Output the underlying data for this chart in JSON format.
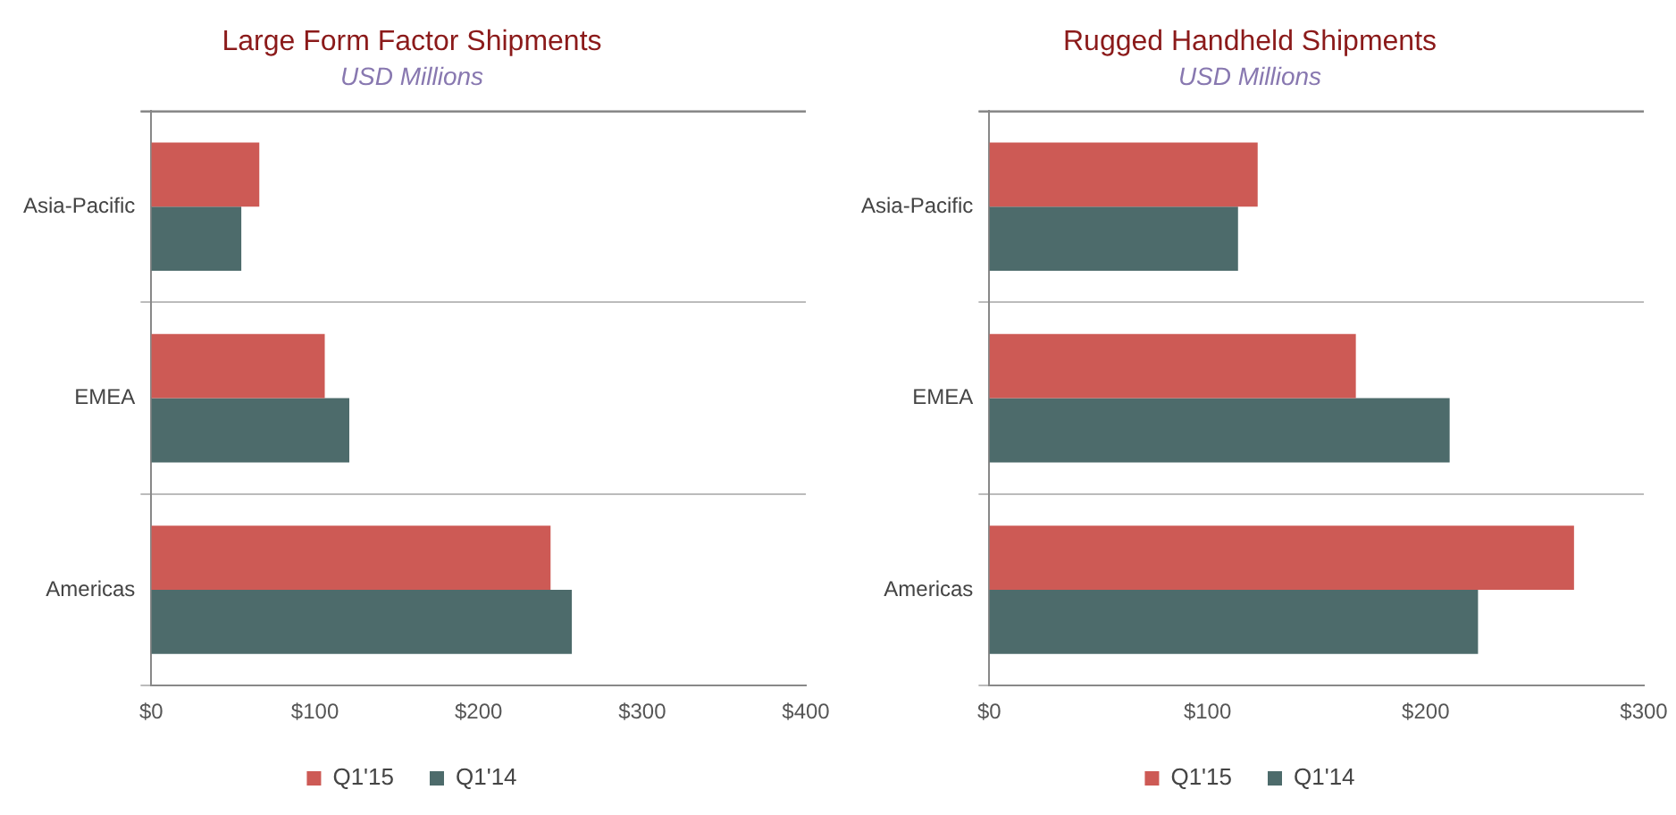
{
  "chart_data": [
    {
      "type": "bar",
      "orientation": "horizontal",
      "title": "Large Form Factor Shipments",
      "subtitle": "USD Millions",
      "categories": [
        "Asia-Pacific",
        "EMEA",
        "Americas"
      ],
      "series": [
        {
          "name": "Q1'15",
          "color": "#cd5a55",
          "values": [
            66,
            106,
            244
          ]
        },
        {
          "name": "Q1'14",
          "color": "#4d6b6b",
          "values": [
            55,
            121,
            257
          ]
        }
      ],
      "xlim": [
        0,
        400
      ],
      "xticks": [
        {
          "value": 0,
          "label": "$0"
        },
        {
          "value": 100,
          "label": "$100"
        },
        {
          "value": 200,
          "label": "$200"
        },
        {
          "value": 300,
          "label": "$300"
        },
        {
          "value": 400,
          "label": "$400"
        }
      ],
      "grid": "y",
      "legend": "bottom"
    },
    {
      "type": "bar",
      "orientation": "horizontal",
      "title": "Rugged Handheld Shipments",
      "subtitle": "USD Millions",
      "categories": [
        "Asia-Pacific",
        "EMEA",
        "Americas"
      ],
      "series": [
        {
          "name": "Q1'15",
          "color": "#cd5a55",
          "values": [
            123,
            168,
            268
          ]
        },
        {
          "name": "Q1'14",
          "color": "#4d6b6b",
          "values": [
            114,
            211,
            224
          ]
        }
      ],
      "xlim": [
        0,
        300
      ],
      "xticks": [
        {
          "value": 0,
          "label": "$0"
        },
        {
          "value": 100,
          "label": "$100"
        },
        {
          "value": 200,
          "label": "$200"
        },
        {
          "value": 300,
          "label": "$300"
        }
      ],
      "grid": "y",
      "legend": "bottom"
    }
  ]
}
